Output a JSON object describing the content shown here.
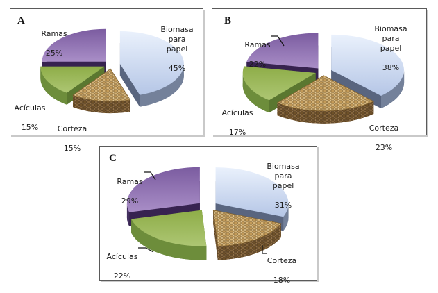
{
  "page": {
    "background": "#ffffff"
  },
  "chart_data": [
    {
      "type": "pie",
      "style": "3d-exploded",
      "panel_label": "A",
      "unit": "%",
      "start_angle_deg": 0,
      "direction": "clockwise",
      "slices": [
        {
          "name": "Biomasa para papel",
          "label": "Biomasa\npara\npapel",
          "value": 45,
          "pct_label": "45%",
          "color_key": "biomasa"
        },
        {
          "name": "Corteza",
          "label": "Corteza",
          "value": 15,
          "pct_label": "15%",
          "color_key": "corteza"
        },
        {
          "name": "Acículas",
          "label": "Acículas",
          "value": 15,
          "pct_label": "15%",
          "color_key": "aciculas"
        },
        {
          "name": "Ramas",
          "label": "Ramas",
          "value": 25,
          "pct_label": "25%",
          "color_key": "ramas"
        }
      ]
    },
    {
      "type": "pie",
      "style": "3d-exploded",
      "panel_label": "B",
      "unit": "%",
      "start_angle_deg": 0,
      "direction": "clockwise",
      "slices": [
        {
          "name": "Biomasa para papel",
          "label": "Biomasa\npara\npapel",
          "value": 38,
          "pct_label": "38%",
          "color_key": "biomasa"
        },
        {
          "name": "Corteza",
          "label": "Corteza",
          "value": 23,
          "pct_label": "23%",
          "color_key": "corteza"
        },
        {
          "name": "Acículas",
          "label": "Acículas",
          "value": 17,
          "pct_label": "17%",
          "color_key": "aciculas"
        },
        {
          "name": "Ramas",
          "label": "Ramas",
          "value": 22,
          "pct_label": "22%",
          "color_key": "ramas"
        }
      ]
    },
    {
      "type": "pie",
      "style": "3d-exploded",
      "panel_label": "C",
      "unit": "%",
      "start_angle_deg": 0,
      "direction": "clockwise",
      "slices": [
        {
          "name": "Biomasa para papel",
          "label": "Biomasa\npara\npapel",
          "value": 31,
          "pct_label": "31%",
          "color_key": "biomasa"
        },
        {
          "name": "Corteza",
          "label": "Corteza",
          "value": 18,
          "pct_label": "18%",
          "color_key": "corteza"
        },
        {
          "name": "Acículas",
          "label": "Acículas",
          "value": 22,
          "pct_label": "22%",
          "color_key": "aciculas"
        },
        {
          "name": "Ramas",
          "label": "Ramas",
          "value": 29,
          "pct_label": "29%",
          "color_key": "ramas"
        }
      ]
    }
  ],
  "colors": {
    "biomasa": {
      "top_light": "#eaf1fc",
      "top_dark": "#b5c6e6",
      "side": "#74819a",
      "side_dark": "#59657f"
    },
    "corteza": {
      "top_base": "#e2c794",
      "top_block_a": "#c39a58",
      "top_block_b": "#d6b478",
      "top_line": "#7d5e2c",
      "side_base": "#96744a",
      "side_block_a": "#6f5128",
      "side_block_b": "#84653c",
      "side_line": "#46321a"
    },
    "aciculas": {
      "top_light": "#adc673",
      "top_dark": "#8ead48",
      "side": "#6d8d3b",
      "side_dark": "#5a7730"
    },
    "ramas": {
      "top_light": "#a98ec7",
      "top_dark": "#7b5ca0",
      "side": "#443060",
      "side_dark": "#372350"
    }
  }
}
